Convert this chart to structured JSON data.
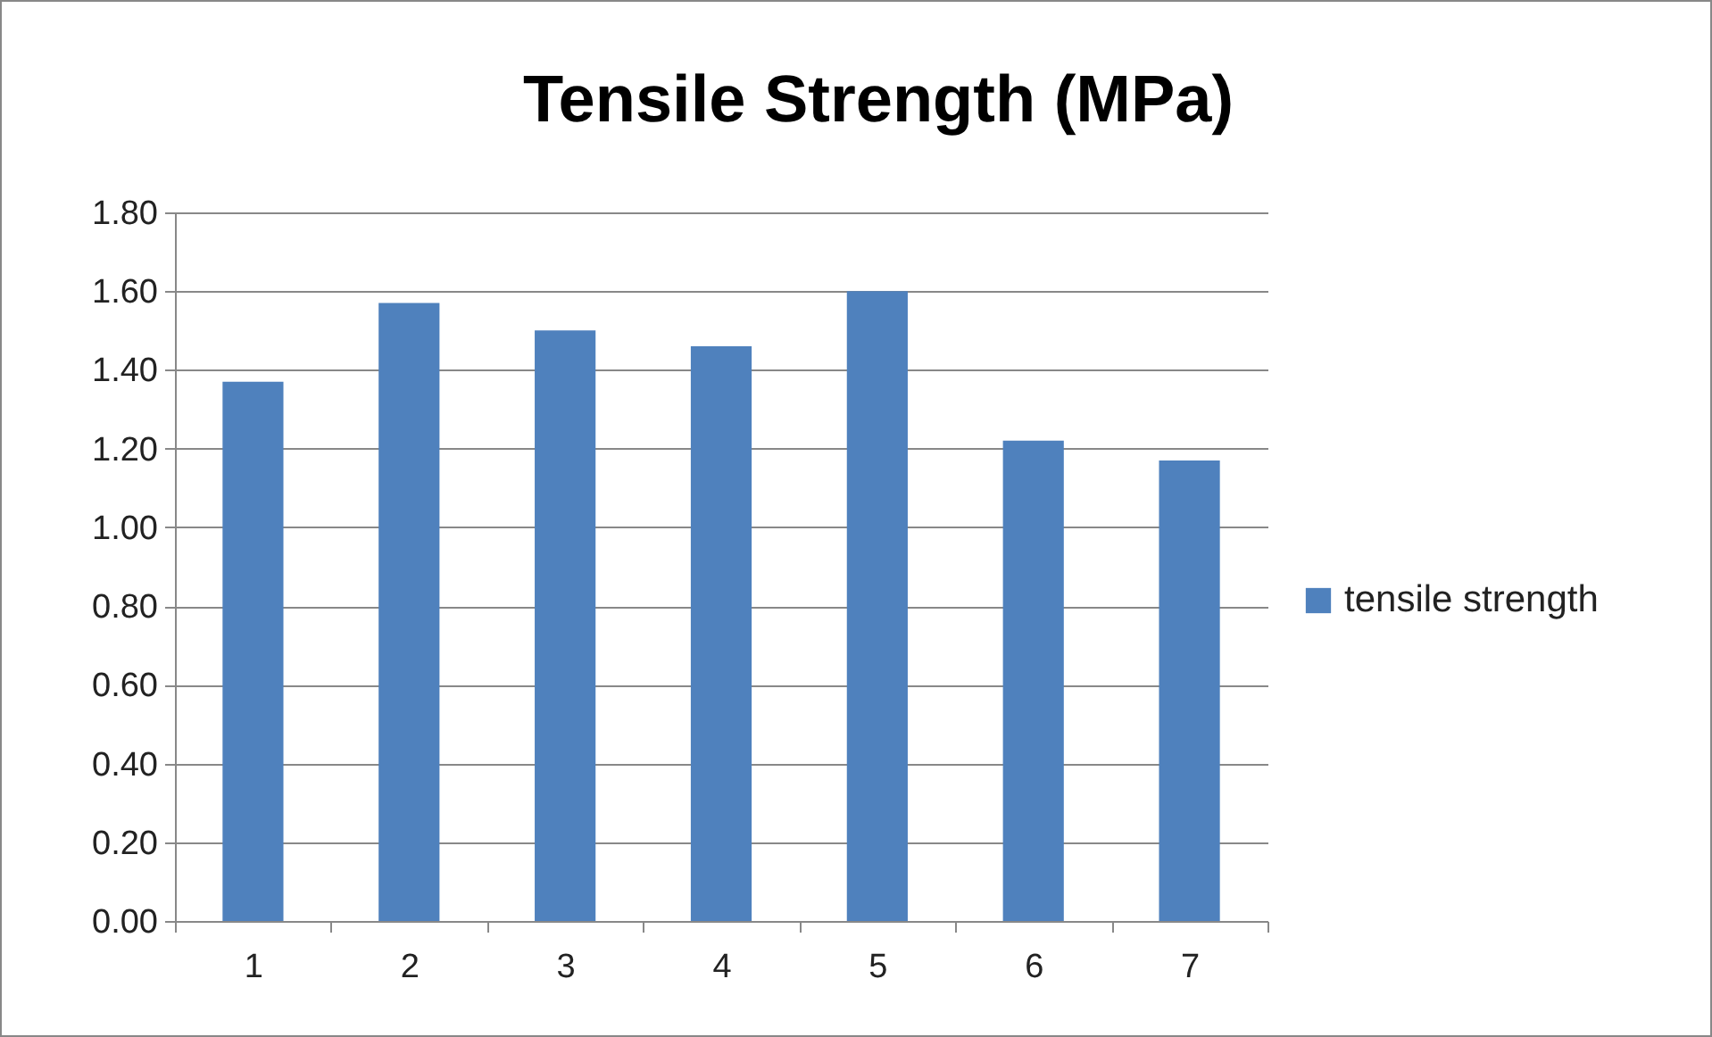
{
  "chart_data": {
    "type": "bar",
    "title": "Tensile Strength (MPa)",
    "categories": [
      "1",
      "2",
      "3",
      "4",
      "5",
      "6",
      "7"
    ],
    "series": [
      {
        "name": "tensile strength",
        "color": "#4f81bd",
        "values": [
          1.37,
          1.57,
          1.5,
          1.46,
          1.6,
          1.22,
          1.17
        ]
      }
    ],
    "ylim": [
      0,
      1.8
    ],
    "yticks": [
      {
        "value": 0,
        "label": "0.00"
      },
      {
        "value": 0.2,
        "label": "0.20"
      },
      {
        "value": 0.4,
        "label": "0.40"
      },
      {
        "value": 0.6,
        "label": "0.60"
      },
      {
        "value": 0.8,
        "label": "0.80"
      },
      {
        "value": 1,
        "label": "1.00"
      },
      {
        "value": 1.2,
        "label": "1.20"
      },
      {
        "value": 1.4,
        "label": "1.40"
      },
      {
        "value": 1.6,
        "label": "1.60"
      },
      {
        "value": 1.8,
        "label": "1.80"
      }
    ],
    "grid": "y",
    "legend": "right"
  }
}
